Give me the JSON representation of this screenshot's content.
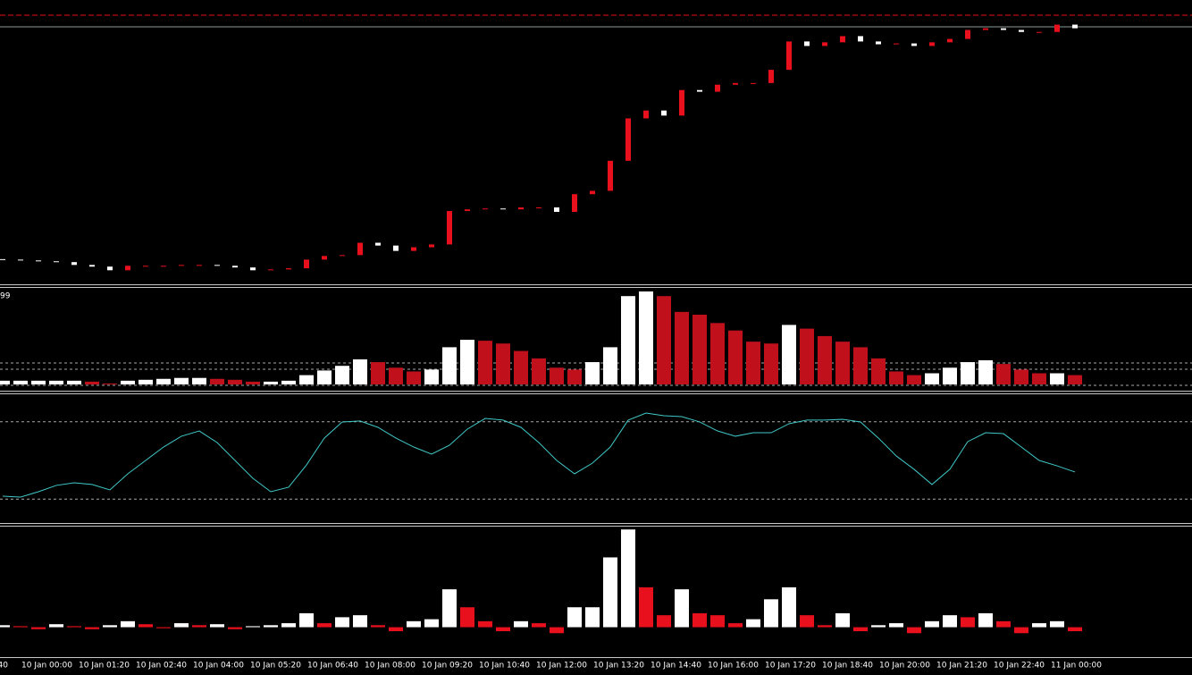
{
  "chart_data": [
    {
      "type": "candlestick",
      "up_color": "#e8101c",
      "down_color": "#ffffff",
      "ylim": [
        0,
        100
      ],
      "close": [
        8.8,
        8.5,
        8.2,
        7.9,
        6.9,
        6.3,
        5.0,
        6.6,
        6.6,
        6.6,
        6.9,
        6.9,
        6.6,
        6.0,
        5.0,
        5.3,
        5.7,
        8.8,
        10.1,
        10.4,
        14.8,
        13.8,
        11.9,
        13.2,
        14.2,
        26.1,
        26.7,
        27.0,
        26.7,
        27.4,
        27.4,
        25.8,
        32.1,
        33.3,
        44.0,
        59.1,
        61.9,
        60.1,
        69.2,
        68.6,
        71.1,
        71.7,
        71.7,
        76.4,
        86.5,
        84.9,
        86.2,
        88.4,
        86.5,
        85.5,
        85.8,
        84.9,
        86.2,
        87.4,
        90.6,
        91.2,
        90.6,
        89.9,
        89.9,
        92.5,
        91.2
      ]
    },
    {
      "type": "bar",
      "label": "99",
      "color": "#ffffff",
      "down_color": "#c0101c",
      "ylim": [
        0,
        100
      ],
      "values": [
        4,
        4,
        4,
        4,
        4,
        3,
        1,
        4,
        5,
        6,
        7,
        7,
        6,
        5,
        3,
        3,
        4,
        10,
        15,
        20,
        27,
        24,
        18,
        14,
        16,
        40,
        48,
        47,
        44,
        36,
        28,
        18,
        16,
        24,
        40,
        95,
        100,
        95,
        78,
        75,
        66,
        58,
        46,
        44,
        64,
        60,
        52,
        46,
        40,
        28,
        14,
        10,
        12,
        18,
        24,
        26,
        22,
        16,
        12,
        12,
        10
      ]
    },
    {
      "type": "line",
      "color": "#40c8c8",
      "ylim": [
        0,
        100
      ],
      "levels": [
        20,
        80
      ],
      "values": [
        22.2,
        21.5,
        25.7,
        30.6,
        32.6,
        31.3,
        27.1,
        39.6,
        50,
        60.4,
        68.8,
        72.9,
        63.9,
        50,
        36.1,
        25.7,
        29.2,
        46.5,
        67.4,
        79.9,
        80.6,
        75.7,
        67.4,
        60.4,
        54.9,
        61.8,
        74.3,
        82.6,
        81.3,
        75.7,
        63.9,
        50,
        39.6,
        47.9,
        60.4,
        81.3,
        86.8,
        84.7,
        84,
        79.9,
        72.9,
        68.8,
        71.5,
        71.5,
        78.5,
        81.3,
        81.3,
        81.9,
        79.9,
        67.4,
        53.5,
        43.1,
        31.3,
        43.1,
        64.6,
        71.5,
        70.8,
        60.4,
        50,
        45.8,
        41
      ]
    },
    {
      "type": "bar",
      "color": "#ffffff",
      "down_color": "#e8101c",
      "ylim": [
        -30,
        100
      ],
      "values": [
        2,
        1,
        -2,
        3,
        1,
        -2,
        2,
        6,
        3,
        -1,
        4,
        2,
        3,
        -2,
        1,
        2,
        4,
        14,
        4,
        10,
        12,
        2,
        -4,
        6,
        8,
        38,
        20,
        6,
        -4,
        6,
        4,
        -6,
        20,
        20,
        70,
        98,
        40,
        12,
        38,
        14,
        12,
        4,
        8,
        28,
        40,
        12,
        2,
        14,
        -4,
        2,
        4,
        -6,
        6,
        12,
        10,
        14,
        6,
        -6,
        4,
        6,
        -4
      ],
      "time_labels": [
        "40",
        "10 Jan 00:00",
        "10 Jan 01:20",
        "10 Jan 02:40",
        "10 Jan 04:00",
        "10 Jan 05:20",
        "10 Jan 06:40",
        "10 Jan 08:00",
        "10 Jan 09:20",
        "10 Jan 10:40",
        "10 Jan 12:00",
        "10 Jan 13:20",
        "10 Jan 14:40",
        "10 Jan 16:00",
        "10 Jan 17:20",
        "10 Jan 18:40",
        "10 Jan 20:00",
        "10 Jan 21:20",
        "10 Jan 22:40",
        "11 Jan 00:00"
      ]
    }
  ]
}
